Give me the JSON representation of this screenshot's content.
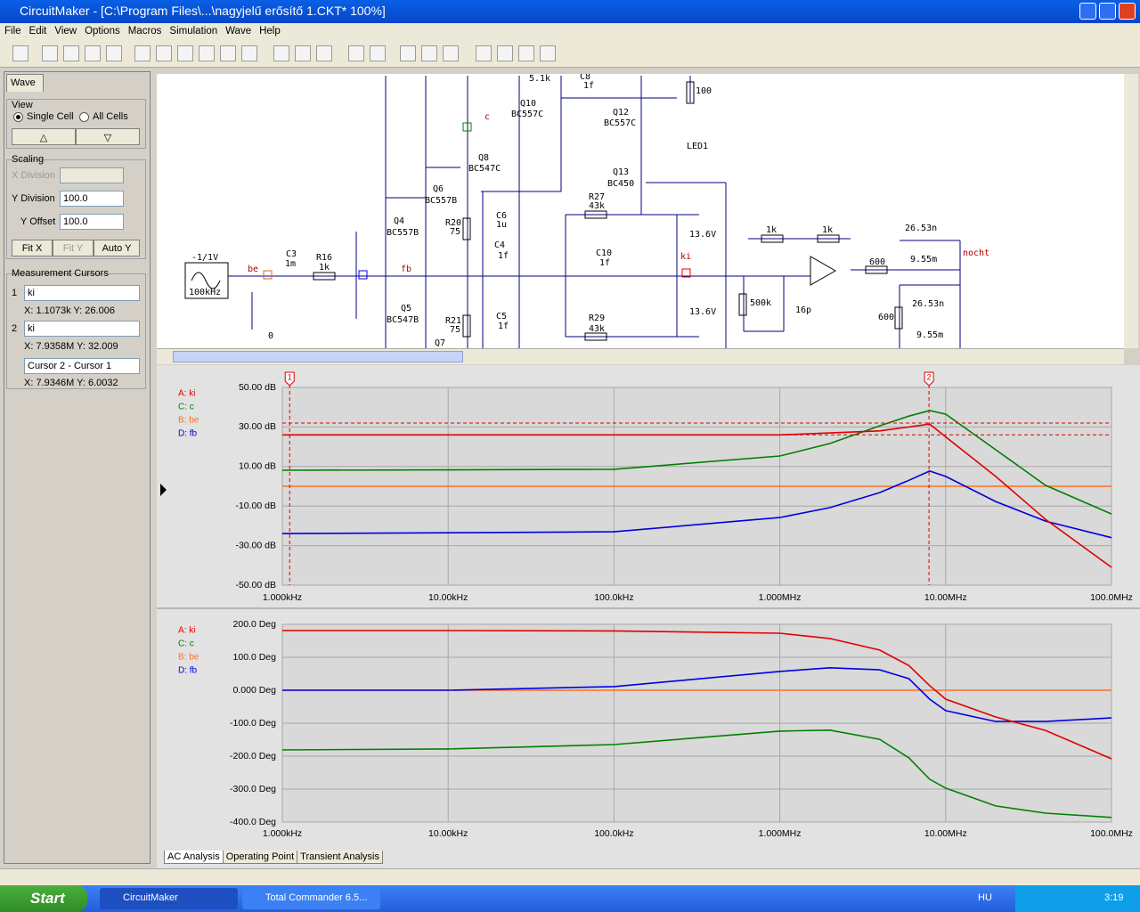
{
  "window": {
    "title": "CircuitMaker - [C:\\Program Files\\...\\nagyjelű erősítő 1.CKT* 100%]",
    "menu": [
      "File",
      "Edit",
      "View",
      "Options",
      "Macros",
      "Simulation",
      "Wave",
      "Help"
    ]
  },
  "left_panel": {
    "tab": "Wave",
    "view": {
      "title": "View",
      "single": "Single Cell",
      "all": "All Cells"
    },
    "scaling": {
      "title": "Scaling",
      "x_division": "X Division",
      "y_division": "Y Division",
      "y_division_value": "100.0",
      "y_offset": "Y Offset",
      "y_offset_value": "100.0",
      "fit_x": "Fit X",
      "fit_y": "Fit Y",
      "auto_y": "Auto Y"
    },
    "cursors": {
      "title": "Measurement Cursors",
      "rows": [
        {
          "num": "1",
          "select": "ki",
          "readout": "X: 1.1073k  Y: 26.006"
        },
        {
          "num": "2",
          "select": "ki",
          "readout": "X: 7.9358M  Y: 32.009"
        }
      ],
      "diff_select": "Cursor 2 - Cursor 1",
      "diff_readout": "X: 7.9346M  Y: 6.0032"
    }
  },
  "schematic": {
    "labels": [
      "5.1k",
      "C8",
      "1f",
      "100",
      "Q10",
      "BC557C",
      "c",
      "Q12",
      "BC557C",
      "LED1",
      "Q8",
      "BC547C",
      "Q13",
      "BC450",
      "Q6",
      "BC557B",
      "R27",
      "43k",
      "R20",
      "75",
      "C6",
      "1u",
      "Q4",
      "BC557B",
      "13.6V",
      "C4",
      "1f",
      "1k",
      "1k",
      "26.53n",
      "-1/1V",
      "C3",
      "1m",
      "R16",
      "1k",
      "be",
      "fb",
      "C10",
      "1f",
      "ki",
      "nocht",
      "600",
      "9.55m",
      "100kHz",
      "500k",
      "16p",
      "26.53n",
      "13.6V",
      "Q5",
      "BC547B",
      "R29",
      "43k",
      "R21",
      "75",
      "C5",
      "1f",
      "600",
      "9.55m",
      "0",
      "Q7"
    ]
  },
  "chart_data": [
    {
      "type": "line",
      "x": [
        1000,
        10000,
        100000,
        1000000,
        2000000,
        4000000,
        6000000,
        8000000,
        10000000,
        20000000,
        40000000,
        100000000
      ],
      "xlim": [
        1000,
        100000000
      ],
      "xscale": "log",
      "xticks": [
        {
          "value": 1000,
          "label": "1.000kHz"
        },
        {
          "value": 10000,
          "label": "10.00kHz"
        },
        {
          "value": 100000,
          "label": "100.0kHz"
        },
        {
          "value": 1000000,
          "label": "1.000MHz"
        },
        {
          "value": 10000000,
          "label": "10.00MHz"
        },
        {
          "value": 100000000,
          "label": "100.0MHz"
        }
      ],
      "ylim": [
        -50,
        50
      ],
      "yticks": [
        {
          "value": 50,
          "label": "50.00 dB"
        },
        {
          "value": 30,
          "label": "30.00 dB"
        },
        {
          "value": 10,
          "label": "10.00 dB"
        },
        {
          "value": -10,
          "label": "-10.00 dB"
        },
        {
          "value": -30,
          "label": "-30.00 dB"
        },
        {
          "value": -50,
          "label": "-50.00 dB"
        }
      ],
      "grid": true,
      "series": [
        {
          "name": "A: ki",
          "color": "#e00000",
          "values": [
            26,
            26,
            26,
            26,
            27,
            28,
            30,
            31.5,
            25,
            5,
            -16.7,
            -41
          ]
        },
        {
          "name": "C: c",
          "color": "#008000",
          "values": [
            8.1,
            8.3,
            8.6,
            15.3,
            21.6,
            30.6,
            35.5,
            38.3,
            36.5,
            18.5,
            0.5,
            -14
          ]
        },
        {
          "name": "B: be",
          "color": "#ff7020",
          "values": [
            0,
            0,
            0,
            0,
            0,
            0,
            0,
            0,
            0,
            0,
            0,
            0
          ]
        },
        {
          "name": "D: fb",
          "color": "#0000e0",
          "values": [
            -23.9,
            -23.5,
            -23,
            -15.8,
            -10.8,
            -3.2,
            3,
            7.7,
            5,
            -7.7,
            -17.6,
            -26
          ]
        }
      ],
      "cursors": [
        {
          "label": "1",
          "x": 1107.3,
          "y": 26.006
        },
        {
          "label": "2",
          "x": 7935800,
          "y": 32.009
        }
      ]
    },
    {
      "type": "line",
      "x": [
        1000,
        10000,
        100000,
        1000000,
        2000000,
        4000000,
        6000000,
        8000000,
        10000000,
        20000000,
        40000000,
        100000000
      ],
      "xlim": [
        1000,
        100000000
      ],
      "xscale": "log",
      "xticks": [
        {
          "value": 1000,
          "label": "1.000kHz"
        },
        {
          "value": 10000,
          "label": "10.00kHz"
        },
        {
          "value": 100000,
          "label": "100.0kHz"
        },
        {
          "value": 1000000,
          "label": "1.000MHz"
        },
        {
          "value": 10000000,
          "label": "10.00MHz"
        },
        {
          "value": 100000000,
          "label": "100.0MHz"
        }
      ],
      "ylim": [
        -400,
        200
      ],
      "yticks": [
        {
          "value": 200,
          "label": "200.0 Deg"
        },
        {
          "value": 100,
          "label": "100.0 Deg"
        },
        {
          "value": 0,
          "label": "0.000 Deg"
        },
        {
          "value": -100,
          "label": "-100.0 Deg"
        },
        {
          "value": -200,
          "label": "-200.0 Deg"
        },
        {
          "value": -300,
          "label": "-300.0 Deg"
        },
        {
          "value": -400,
          "label": "-400.0 Deg"
        }
      ],
      "grid": true,
      "series": [
        {
          "name": "A: ki",
          "color": "#e00000",
          "values": [
            181,
            181,
            180,
            173,
            157,
            122,
            75,
            14,
            -27,
            -81,
            -122,
            -208
          ]
        },
        {
          "name": "C: c",
          "color": "#008000",
          "values": [
            -181,
            -178,
            -165,
            -124,
            -121,
            -149,
            -205,
            -270,
            -297,
            -351,
            -373,
            -386
          ]
        },
        {
          "name": "B: be",
          "color": "#ff7020",
          "values": [
            0,
            0,
            0,
            0,
            0,
            0,
            0,
            0,
            0,
            0,
            0,
            0
          ]
        },
        {
          "name": "D: fb",
          "color": "#0000e0",
          "values": [
            0,
            0,
            11,
            57,
            68,
            62,
            35,
            -27,
            -62,
            -95,
            -95,
            -84
          ]
        }
      ]
    }
  ],
  "analysis_tabs": [
    "AC Analysis",
    "Operating Point",
    "Transient Analysis"
  ],
  "taskbar": {
    "start": "Start",
    "tasks": [
      "CircuitMaker",
      "Total Commander 6.5..."
    ],
    "lang": "HU",
    "clock": "3:19"
  }
}
